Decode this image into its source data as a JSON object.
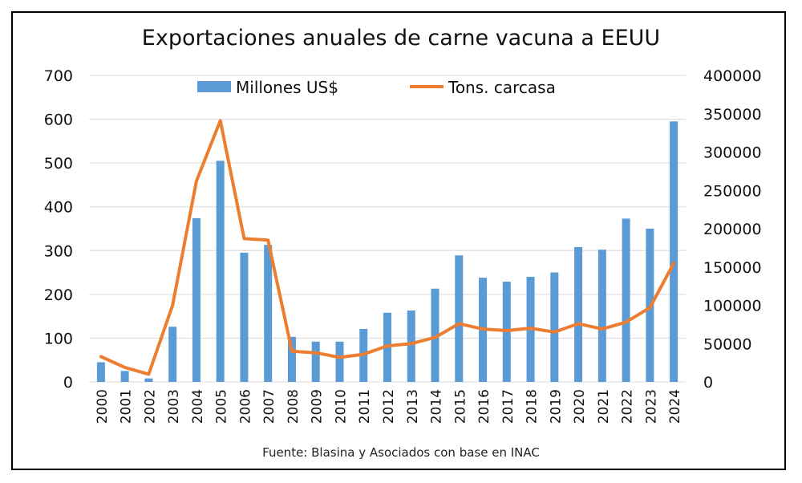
{
  "chart_data": {
    "type": "bar",
    "title": "Exportaciones anuales de carne vacuna a EEUU",
    "source": "Fuente: Blasina y Asociados con base en INAC",
    "categories": [
      "2000",
      "2001",
      "2002",
      "2003",
      "2004",
      "2005",
      "2006",
      "2007",
      "2008",
      "2009",
      "2010",
      "2011",
      "2012",
      "2013",
      "2014",
      "2015",
      "2016",
      "2017",
      "2018",
      "2019",
      "2020",
      "2021",
      "2022",
      "2023",
      "2024"
    ],
    "series": [
      {
        "name": "Millones US$",
        "type": "bar",
        "axis": "left",
        "color": "#5B9BD5",
        "values": [
          45,
          25,
          8,
          126,
          374,
          505,
          295,
          313,
          103,
          92,
          92,
          121,
          158,
          163,
          213,
          289,
          238,
          229,
          240,
          250,
          308,
          302,
          373,
          350,
          595
        ]
      },
      {
        "name": "Tons. carcasa",
        "type": "line",
        "axis": "right",
        "color": "#ED7D31",
        "values": [
          33000,
          19000,
          10000,
          100000,
          262000,
          341000,
          187000,
          185000,
          40000,
          38000,
          32000,
          36000,
          47000,
          50000,
          58000,
          76000,
          69000,
          67000,
          70000,
          65000,
          76000,
          69000,
          78000,
          97000,
          155000
        ]
      }
    ],
    "y_left": {
      "min": 0,
      "max": 700,
      "ticks": [
        "0",
        "100",
        "200",
        "300",
        "400",
        "500",
        "600",
        "700"
      ]
    },
    "y_right": {
      "min": 0,
      "max": 400000,
      "ticks": [
        "0",
        "50000",
        "100000",
        "150000",
        "200000",
        "250000",
        "300000",
        "350000",
        "400000"
      ]
    },
    "grid": true,
    "legend_position": "top"
  }
}
